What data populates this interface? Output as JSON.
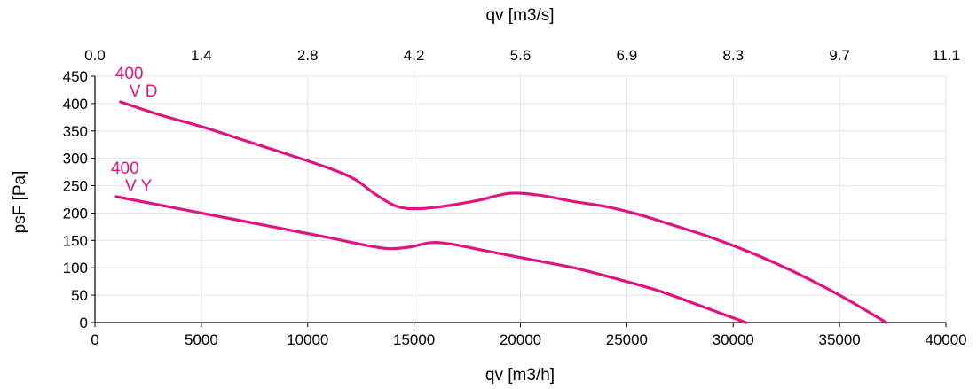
{
  "chart_data": {
    "type": "line",
    "xlabel": "qv [m3/h]",
    "x2label": "qv [m3/s]",
    "ylabel": "psF [Pa]",
    "xlim": [
      0,
      40000
    ],
    "ylim": [
      0,
      450
    ],
    "x_ticks": [
      0,
      5000,
      10000,
      15000,
      20000,
      25000,
      30000,
      35000,
      40000
    ],
    "x_tick_labels": [
      "0",
      "5000",
      "10000",
      "15000",
      "20000",
      "25000",
      "30000",
      "35000",
      "40000"
    ],
    "y_ticks": [
      0,
      50,
      100,
      150,
      200,
      250,
      300,
      350,
      400,
      450
    ],
    "y_tick_labels": [
      "0",
      "50",
      "100",
      "150",
      "200",
      "250",
      "300",
      "350",
      "400",
      "450"
    ],
    "x2_ticks": [
      0,
      5000,
      10000,
      15000,
      20000,
      25000,
      30000,
      35000,
      40000
    ],
    "x2_tick_labels": [
      "0.0",
      "1.4",
      "2.8",
      "4.2",
      "5.6",
      "6.9",
      "8.3",
      "9.7",
      "11.1"
    ],
    "grid": true,
    "color": "#e0147e",
    "series": [
      {
        "label_lines": [
          "400",
          "V D"
        ],
        "x": [
          1200,
          3000,
          5000,
          7000,
          9000,
          11000,
          12200,
          13200,
          14200,
          15200,
          16500,
          18000,
          19500,
          21000,
          22500,
          24000,
          25500,
          27000,
          29000,
          31000,
          33000,
          35000,
          37200
        ],
        "y": [
          403,
          380,
          358,
          333,
          308,
          282,
          262,
          234,
          212,
          208,
          213,
          223,
          236,
          232,
          221,
          212,
          198,
          180,
          155,
          125,
          90,
          50,
          0
        ]
      },
      {
        "label_lines": [
          "400",
          "V Y"
        ],
        "x": [
          1000,
          3000,
          5000,
          7000,
          9000,
          11000,
          12500,
          13800,
          14800,
          15800,
          16800,
          18500,
          20500,
          22500,
          24500,
          26500,
          28500,
          30600
        ],
        "y": [
          230,
          215,
          200,
          185,
          170,
          155,
          143,
          135,
          138,
          146,
          143,
          130,
          115,
          100,
          80,
          58,
          30,
          0
        ]
      }
    ]
  }
}
